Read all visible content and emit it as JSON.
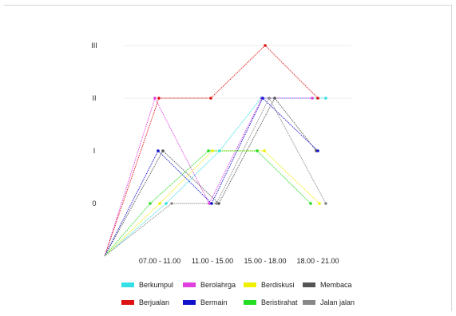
{
  "chart_data": {
    "type": "line",
    "categories": [
      "07.00 - 11.00",
      "11.00 - 15.00",
      "15.00 - 18.00",
      "18.00 - 21.00"
    ],
    "y_ticks": [
      "0",
      "I",
      "II",
      "III"
    ],
    "ylim": [
      0,
      3
    ],
    "grid": false,
    "legend_position": "bottom",
    "series": [
      {
        "name": "Berkumpul",
        "color": "#33e0e6",
        "values": [
          0,
          1,
          2,
          2
        ]
      },
      {
        "name": "Berolahrga",
        "color": "#e040e0",
        "values": [
          2,
          0,
          2,
          2
        ]
      },
      {
        "name": "Berdiskusi",
        "color": "#f0f000",
        "values": [
          0,
          1,
          1,
          0
        ]
      },
      {
        "name": "Membaca",
        "color": "#555555",
        "values": [
          1,
          0,
          2,
          1
        ]
      },
      {
        "name": "Berjualan",
        "color": "#dd1111",
        "values": [
          2,
          2,
          3,
          2
        ]
      },
      {
        "name": "Bermain",
        "color": "#1111cc",
        "values": [
          1,
          0,
          2,
          1
        ]
      },
      {
        "name": "Beristirahat",
        "color": "#22dd22",
        "values": [
          0,
          1,
          1,
          0
        ]
      },
      {
        "name": "Jalan jalan",
        "color": "#888888",
        "values": [
          0,
          0,
          2,
          0
        ]
      }
    ]
  }
}
